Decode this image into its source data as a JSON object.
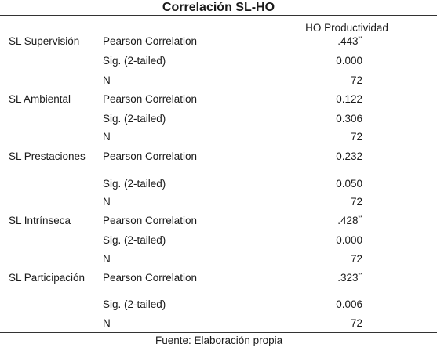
{
  "table": {
    "title": "Correlación SL-HO",
    "column_header": "HO Productividad",
    "groups": [
      {
        "label": "SL Supervisión",
        "rows": [
          {
            "stat": "Pearson Correlation",
            "value": ".443",
            "marker": "**"
          },
          {
            "stat": "Sig. (2-tailed)",
            "value": "0.000",
            "marker": ""
          },
          {
            "stat": "N",
            "value": "72",
            "marker": ""
          }
        ]
      },
      {
        "label": "SL Ambiental",
        "rows": [
          {
            "stat": "Pearson Correlation",
            "value": "0.122",
            "marker": ""
          },
          {
            "stat": "Sig. (2-tailed)",
            "value": "0.306",
            "marker": ""
          },
          {
            "stat": "N",
            "value": "72",
            "marker": ""
          }
        ]
      },
      {
        "label": "SL Prestaciones",
        "rows": [
          {
            "stat": "Pearson Correlation",
            "value": "0.232",
            "marker": ""
          },
          {
            "stat": "Sig. (2-tailed)",
            "value": "0.050",
            "marker": ""
          },
          {
            "stat": "N",
            "value": "72",
            "marker": ""
          }
        ]
      },
      {
        "label": "SL Intrínseca",
        "rows": [
          {
            "stat": "Pearson Correlation",
            "value": ".428",
            "marker": "**"
          },
          {
            "stat": "Sig. (2-tailed)",
            "value": "0.000",
            "marker": ""
          },
          {
            "stat": "N",
            "value": "72",
            "marker": ""
          }
        ]
      },
      {
        "label": "SL Participación",
        "rows": [
          {
            "stat": "Pearson Correlation",
            "value": ".323",
            "marker": "**"
          },
          {
            "stat": "Sig. (2-tailed)",
            "value": "0.006",
            "marker": ""
          },
          {
            "stat": "N",
            "value": "72",
            "marker": ""
          }
        ]
      }
    ],
    "source_note": "Fuente: Elaboración propia"
  }
}
